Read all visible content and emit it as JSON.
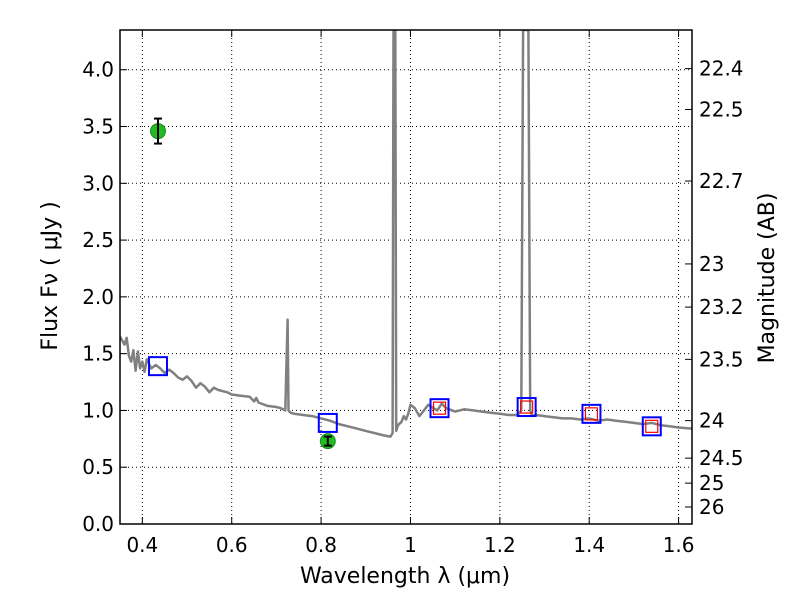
{
  "chart_data": {
    "type": "line",
    "xlabel": "Wavelength  λ (μm)",
    "ylabel": "Flux  Fν  ( μJy )",
    "y2label": "Magnitude (AB)",
    "xlim": [
      0.35,
      1.63
    ],
    "ylim": [
      0.0,
      4.35
    ],
    "grid": true,
    "x_ticks": [
      0.4,
      0.6,
      0.8,
      1.0,
      1.2,
      1.4,
      1.6
    ],
    "x_tick_labels": [
      "0.4",
      "0.6",
      "0.8",
      "1",
      "1.2",
      "1.4",
      "1.6"
    ],
    "y_ticks": [
      0.0,
      0.5,
      1.0,
      1.5,
      2.0,
      2.5,
      3.0,
      3.5,
      4.0
    ],
    "y_tick_labels": [
      "0.0",
      "0.5",
      "1.0",
      "1.5",
      "2.0",
      "2.5",
      "3.0",
      "3.5",
      "4.0"
    ],
    "y2_ticks": [
      {
        "flux": 4.01,
        "label": "22.4"
      },
      {
        "flux": 3.65,
        "label": "22.5"
      },
      {
        "flux": 3.02,
        "label": "22.7"
      },
      {
        "flux": 2.29,
        "label": "23"
      },
      {
        "flux": 1.91,
        "label": "23.2"
      },
      {
        "flux": 1.45,
        "label": "23.5"
      },
      {
        "flux": 0.91,
        "label": "24"
      },
      {
        "flux": 0.58,
        "label": "24.5"
      },
      {
        "flux": 0.36,
        "label": "25"
      },
      {
        "flux": 0.15,
        "label": "26"
      }
    ],
    "series": [
      {
        "kind": "model_spectrum",
        "color": "#808080",
        "x": [
          0.35,
          0.36,
          0.365,
          0.37,
          0.375,
          0.38,
          0.385,
          0.39,
          0.395,
          0.4,
          0.405,
          0.41,
          0.42,
          0.43,
          0.44,
          0.45,
          0.46,
          0.47,
          0.48,
          0.49,
          0.5,
          0.51,
          0.52,
          0.53,
          0.54,
          0.55,
          0.56,
          0.57,
          0.58,
          0.59,
          0.6,
          0.62,
          0.64,
          0.65,
          0.655,
          0.66,
          0.68,
          0.7,
          0.71,
          0.72,
          0.725,
          0.727,
          0.729,
          0.732,
          0.74,
          0.76,
          0.78,
          0.8,
          0.82,
          0.84,
          0.86,
          0.88,
          0.9,
          0.92,
          0.94,
          0.955,
          0.96,
          0.962,
          0.964,
          0.966,
          0.968,
          0.972,
          0.98,
          0.985,
          0.99,
          0.995,
          1.0,
          1.01,
          1.02,
          1.04,
          1.06,
          1.07,
          1.08,
          1.1,
          1.12,
          1.14,
          1.16,
          1.18,
          1.2,
          1.22,
          1.24,
          1.248,
          1.252,
          1.256,
          1.26,
          1.264,
          1.268,
          1.272,
          1.28,
          1.3,
          1.32,
          1.34,
          1.36,
          1.38,
          1.4,
          1.42,
          1.44,
          1.46,
          1.48,
          1.5,
          1.52,
          1.54,
          1.56,
          1.58,
          1.6,
          1.63
        ],
        "y": [
          1.65,
          1.58,
          1.64,
          1.48,
          1.43,
          1.53,
          1.35,
          1.52,
          1.37,
          1.43,
          1.34,
          1.45,
          1.37,
          1.4,
          1.37,
          1.33,
          1.36,
          1.33,
          1.29,
          1.27,
          1.3,
          1.26,
          1.2,
          1.24,
          1.21,
          1.16,
          1.2,
          1.18,
          1.17,
          1.16,
          1.14,
          1.13,
          1.12,
          1.08,
          1.11,
          1.07,
          1.04,
          1.03,
          1.02,
          1.0,
          1.8,
          1.0,
          0.99,
          0.98,
          0.97,
          0.96,
          0.95,
          0.93,
          0.91,
          0.88,
          0.86,
          0.84,
          0.82,
          0.8,
          0.78,
          0.77,
          0.8,
          4.35,
          4.35,
          4.35,
          0.82,
          0.87,
          0.9,
          0.95,
          0.92,
          0.97,
          1.05,
          1.02,
          0.95,
          1.05,
          1.0,
          1.06,
          1.02,
          0.99,
          1.01,
          1.0,
          0.99,
          0.98,
          0.97,
          0.96,
          0.96,
          1.0,
          4.35,
          4.35,
          4.35,
          4.35,
          1.0,
          0.95,
          0.96,
          0.95,
          0.94,
          0.93,
          0.93,
          0.92,
          0.93,
          0.91,
          0.92,
          0.91,
          0.9,
          0.89,
          0.88,
          0.89,
          0.87,
          0.86,
          0.85,
          0.84
        ]
      },
      {
        "kind": "observed_photometry",
        "marker": "circle",
        "color": "#22bb22",
        "points": [
          {
            "x": 0.435,
            "y": 3.46,
            "yerr": 0.11
          },
          {
            "x": 0.815,
            "y": 0.73,
            "yerr": 0.04
          }
        ]
      },
      {
        "kind": "model_photometry",
        "marker": "square",
        "color": "#0000ff",
        "points": [
          {
            "x": 0.435,
            "y": 1.39
          },
          {
            "x": 0.815,
            "y": 0.89
          },
          {
            "x": 1.065,
            "y": 1.02
          },
          {
            "x": 1.26,
            "y": 1.03
          },
          {
            "x": 1.405,
            "y": 0.97
          },
          {
            "x": 1.54,
            "y": 0.86
          }
        ]
      },
      {
        "kind": "model_photometry_inner",
        "marker": "square",
        "color": "#ff0000",
        "points": [
          {
            "x": 1.065,
            "y": 1.02
          },
          {
            "x": 1.26,
            "y": 1.03
          },
          {
            "x": 1.405,
            "y": 0.97
          },
          {
            "x": 1.54,
            "y": 0.86
          }
        ]
      }
    ]
  }
}
